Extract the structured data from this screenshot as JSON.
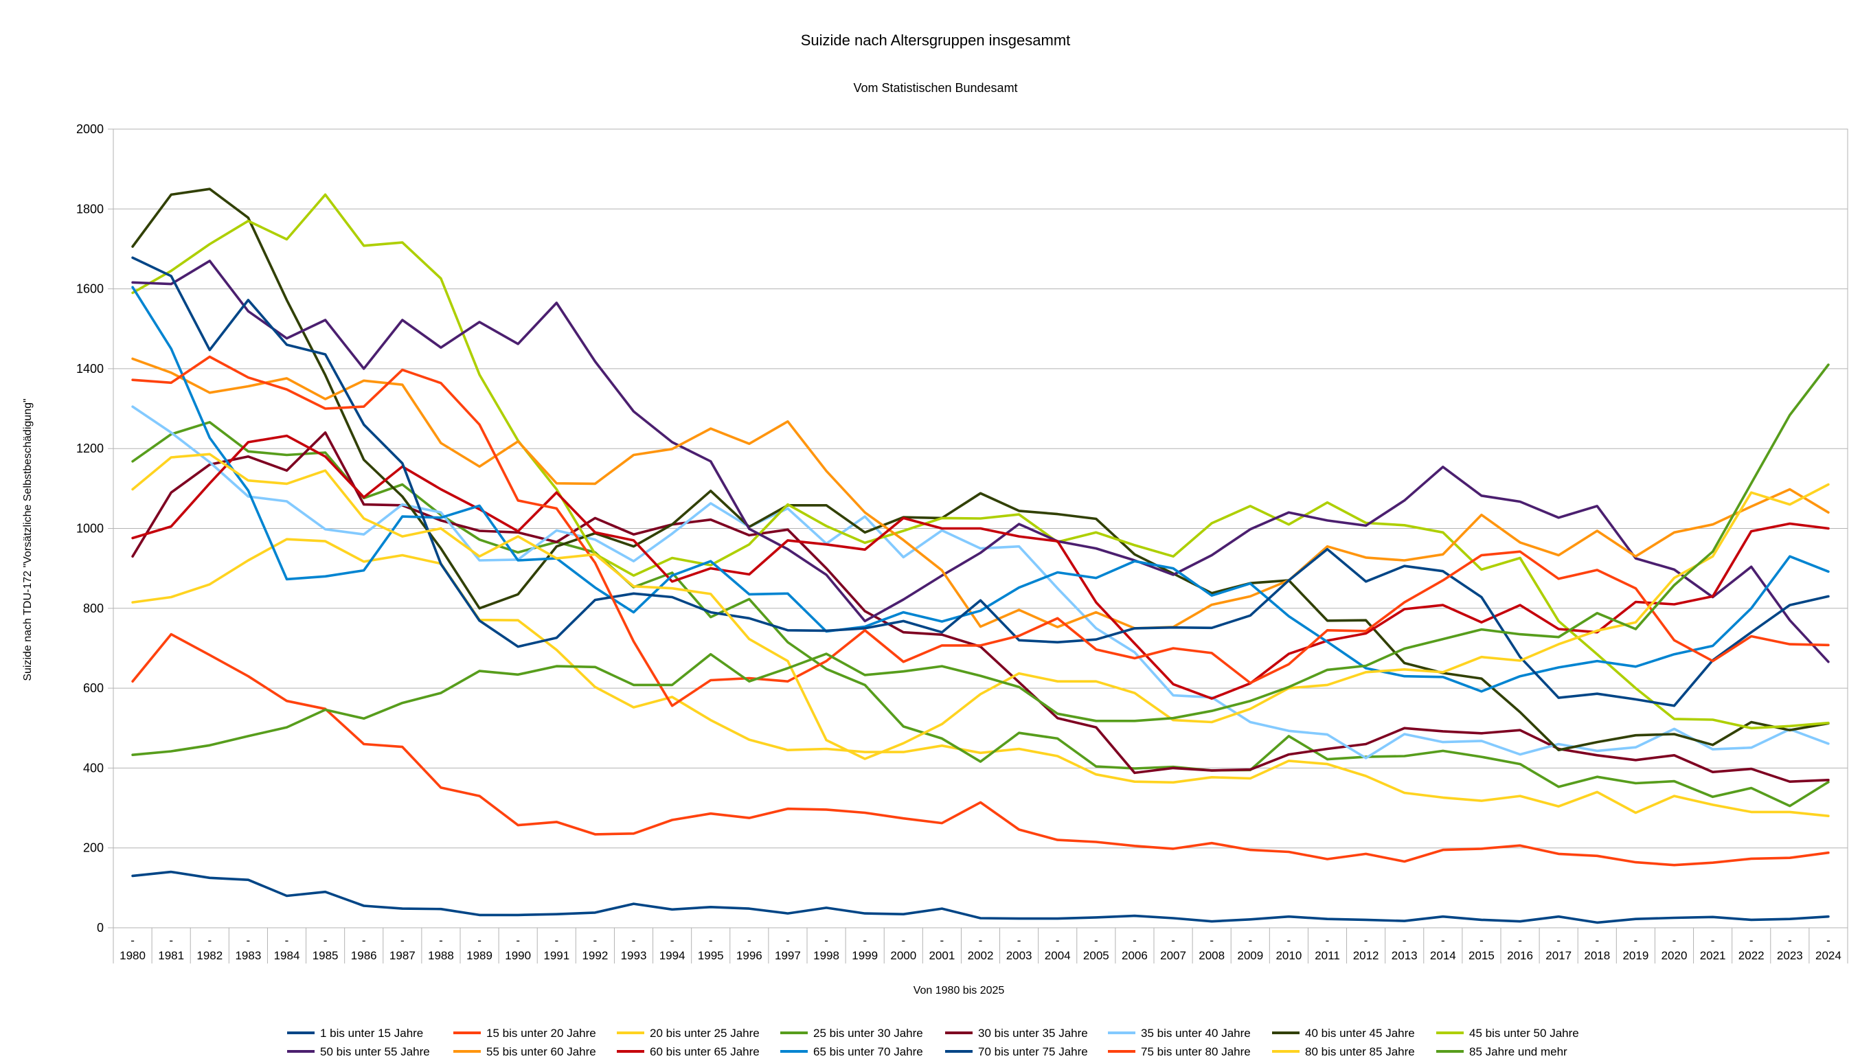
{
  "chart_data": {
    "type": "line",
    "title": "Suizide nach Altersgruppen insgesammt",
    "subtitle": "Vom Statistischen Bundesamt",
    "xlabel": "Von 1980 bis 2025",
    "ylabel": "Suizide nach TDU-172 \"Vorsätzliche Selbstbeschädigung\"",
    "ylim": [
      0,
      2000
    ],
    "yticks": [
      "0",
      "200",
      "400",
      "600",
      "800",
      "1000",
      "1200",
      "1400",
      "1600",
      "1800",
      "2000"
    ],
    "tick_prefix": "-",
    "grid": true,
    "legend_position": "bottom",
    "categories": [
      "1980",
      "1981",
      "1982",
      "1983",
      "1984",
      "1985",
      "1986",
      "1987",
      "1988",
      "1989",
      "1990",
      "1991",
      "1992",
      "1993",
      "1994",
      "1995",
      "1996",
      "1997",
      "1998",
      "1999",
      "2000",
      "2001",
      "2002",
      "2003",
      "2004",
      "2005",
      "2006",
      "2007",
      "2008",
      "2009",
      "2010",
      "2011",
      "2012",
      "2013",
      "2014",
      "2015",
      "2016",
      "2017",
      "2018",
      "2019",
      "2020",
      "2021",
      "2022",
      "2023",
      "2024"
    ],
    "series": [
      {
        "name": "1 bis unter 15 Jahre",
        "color": "#004586",
        "values": [
          130,
          140,
          125,
          120,
          80,
          90,
          55,
          48,
          47,
          32,
          32,
          34,
          38,
          60,
          46,
          52,
          48,
          36,
          50,
          36,
          34,
          48,
          24,
          23,
          23,
          26,
          30,
          24,
          16,
          21,
          28,
          22,
          20,
          17,
          28,
          20,
          16,
          28,
          13,
          22,
          25,
          27,
          20,
          22,
          28
        ]
      },
      {
        "name": "15 bis unter 20 Jahre",
        "color": "#ff420e",
        "values": [
          617,
          735,
          683,
          630,
          568,
          548,
          460,
          453,
          351,
          330,
          257,
          265,
          234,
          236,
          270,
          286,
          275,
          298,
          296,
          288,
          274,
          262,
          314,
          246,
          220,
          215,
          205,
          198,
          212,
          195,
          190,
          172,
          185,
          166,
          195,
          198,
          206,
          185,
          180,
          164,
          157,
          163,
          173,
          175,
          188
        ]
      },
      {
        "name": "20 bis unter 25 Jahre",
        "color": "#ffd320",
        "values": [
          815,
          828,
          860,
          920,
          973,
          968,
          917,
          933,
          912,
          771,
          770,
          696,
          603,
          552,
          578,
          520,
          471,
          445,
          448,
          440,
          440,
          456,
          438,
          448,
          430,
          384,
          366,
          364,
          377,
          374,
          418,
          410,
          380,
          338,
          326,
          318,
          330,
          304,
          340,
          288,
          330,
          308,
          290,
          290,
          280
        ]
      },
      {
        "name": "25 bis unter 30 Jahre",
        "color": "#579d1c",
        "values": [
          1168,
          1236,
          1266,
          1193,
          1184,
          1190,
          1076,
          1110,
          1034,
          972,
          940,
          966,
          940,
          853,
          889,
          778,
          823,
          715,
          648,
          608,
          504,
          474,
          416,
          488,
          474,
          404,
          399,
          403,
          394,
          395,
          480,
          422,
          428,
          430,
          443,
          428,
          410,
          353,
          378,
          362,
          367,
          328,
          350,
          305,
          365
        ]
      },
      {
        "name": "30 bis unter 35 Jahre",
        "color": "#7e0021",
        "values": [
          930,
          1090,
          1160,
          1180,
          1145,
          1240,
          1060,
          1058,
          1020,
          994,
          990,
          966,
          1026,
          985,
          1010,
          1022,
          983,
          997,
          900,
          793,
          740,
          734,
          704,
          615,
          525,
          502,
          388,
          400,
          394,
          396,
          434,
          448,
          460,
          500,
          492,
          487,
          495,
          448,
          432,
          420,
          432,
          390,
          398,
          366,
          370
        ]
      },
      {
        "name": "35 bis unter 40 Jahre",
        "color": "#83caff",
        "values": [
          1305,
          1240,
          1166,
          1080,
          1068,
          998,
          985,
          1060,
          1040,
          920,
          922,
          995,
          972,
          918,
          987,
          1063,
          1004,
          1050,
          962,
          1030,
          928,
          995,
          950,
          955,
          850,
          750,
          690,
          582,
          577,
          515,
          493,
          484,
          425,
          485,
          465,
          468,
          434,
          460,
          443,
          452,
          498,
          447,
          451,
          497,
          461
        ]
      },
      {
        "name": "40 bis unter 45 Jahre",
        "color": "#314004",
        "values": [
          1706,
          1836,
          1850,
          1778,
          1572,
          1384,
          1172,
          1080,
          950,
          800,
          835,
          955,
          988,
          955,
          1010,
          1094,
          1004,
          1058,
          1058,
          990,
          1028,
          1026,
          1088,
          1044,
          1036,
          1024,
          935,
          887,
          838,
          863,
          870,
          769,
          770,
          663,
          638,
          624,
          540,
          445,
          465,
          482,
          485,
          458,
          515,
          495,
          512
        ]
      },
      {
        "name": "45 bis unter 50 Jahre",
        "color": "#aecf00",
        "values": [
          1590,
          1645,
          1712,
          1770,
          1724,
          1836,
          1708,
          1716,
          1626,
          1385,
          1220,
          1098,
          936,
          882,
          926,
          908,
          960,
          1060,
          1006,
          964,
          994,
          1026,
          1025,
          1035,
          966,
          990,
          958,
          930,
          1013,
          1056,
          1010,
          1065,
          1014,
          1008,
          990,
          897,
          926,
          768,
          685,
          600,
          523,
          521,
          500,
          505,
          513
        ]
      },
      {
        "name": "50 bis unter 55 Jahre",
        "color": "#4b1f6f",
        "values": [
          1616,
          1612,
          1670,
          1544,
          1476,
          1522,
          1400,
          1522,
          1453,
          1517,
          1462,
          1565,
          1418,
          1293,
          1216,
          1168,
          999,
          948,
          884,
          768,
          822,
          882,
          939,
          1011,
          968,
          950,
          920,
          884,
          933,
          998,
          1040,
          1020,
          1007,
          1070,
          1154,
          1082,
          1067,
          1027,
          1056,
          925,
          897,
          828,
          904,
          770,
          666
        ]
      },
      {
        "name": "55 bis unter 60 Jahre",
        "color": "#ff950e",
        "values": [
          1425,
          1390,
          1340,
          1356,
          1376,
          1324,
          1370,
          1360,
          1214,
          1155,
          1218,
          1113,
          1112,
          1184,
          1199,
          1250,
          1212,
          1268,
          1144,
          1040,
          971,
          895,
          754,
          796,
          753,
          790,
          750,
          753,
          809,
          830,
          870,
          955,
          927,
          920,
          935,
          1034,
          965,
          933,
          994,
          930,
          990,
          1010,
          1055,
          1098,
          1040
        ]
      },
      {
        "name": "60 bis unter 65 Jahre",
        "color": "#c5000b",
        "values": [
          976,
          1005,
          1113,
          1216,
          1232,
          1180,
          1078,
          1155,
          1098,
          1048,
          993,
          1090,
          990,
          970,
          867,
          900,
          885,
          970,
          960,
          947,
          1026,
          1000,
          1000,
          980,
          968,
          815,
          712,
          610,
          574,
          612,
          686,
          719,
          737,
          798,
          808,
          765,
          808,
          748,
          740,
          816,
          810,
          830,
          993,
          1012,
          1000
        ]
      },
      {
        "name": "65 bis unter 70 Jahre",
        "color": "#0084d1",
        "values": [
          1604,
          1450,
          1227,
          1095,
          873,
          880,
          895,
          1030,
          1027,
          1057,
          920,
          925,
          852,
          790,
          882,
          918,
          835,
          837,
          742,
          754,
          790,
          767,
          794,
          852,
          890,
          876,
          918,
          900,
          832,
          862,
          780,
          716,
          650,
          630,
          628,
          592,
          630,
          652,
          668,
          654,
          685,
          706,
          800,
          930,
          892
        ]
      },
      {
        "name": "70 bis unter 75 Jahre",
        "color": "#004586",
        "values": [
          1678,
          1632,
          1447,
          1572,
          1460,
          1436,
          1260,
          1163,
          911,
          769,
          704,
          726,
          821,
          837,
          828,
          790,
          775,
          745,
          744,
          750,
          768,
          740,
          820,
          720,
          715,
          722,
          750,
          752,
          751,
          782,
          870,
          948,
          867,
          906,
          893,
          828,
          678,
          576,
          586,
          572,
          556,
          670,
          740,
          808,
          830
        ]
      },
      {
        "name": "75 bis unter 80 Jahre",
        "color": "#ff420e",
        "values": [
          1372,
          1365,
          1430,
          1378,
          1348,
          1300,
          1305,
          1397,
          1364,
          1260,
          1070,
          1050,
          914,
          717,
          556,
          620,
          625,
          617,
          668,
          745,
          666,
          707,
          707,
          731,
          775,
          697,
          675,
          700,
          688,
          613,
          660,
          745,
          743,
          815,
          870,
          933,
          942,
          874,
          896,
          850,
          720,
          668,
          730,
          710,
          708
        ]
      },
      {
        "name": "80 bis unter 85 Jahre",
        "color": "#ffd320",
        "values": [
          1098,
          1178,
          1186,
          1120,
          1112,
          1145,
          1025,
          980,
          1000,
          930,
          980,
          925,
          935,
          855,
          850,
          836,
          723,
          668,
          470,
          423,
          462,
          510,
          585,
          637,
          617,
          617,
          588,
          520,
          515,
          548,
          600,
          608,
          640,
          647,
          640,
          678,
          669,
          710,
          744,
          765,
          876,
          930,
          1090,
          1060,
          1110
        ]
      },
      {
        "name": "85 Jahre und mehr",
        "color": "#579d1c",
        "values": [
          433,
          442,
          457,
          480,
          502,
          546,
          524,
          563,
          588,
          643,
          634,
          655,
          653,
          608,
          608,
          685,
          617,
          650,
          686,
          633,
          642,
          655,
          631,
          603,
          536,
          518,
          518,
          525,
          543,
          568,
          603,
          646,
          656,
          699,
          723,
          747,
          735,
          728,
          788,
          748,
          858,
          942,
          1113,
          1284,
          1410
        ]
      }
    ]
  }
}
